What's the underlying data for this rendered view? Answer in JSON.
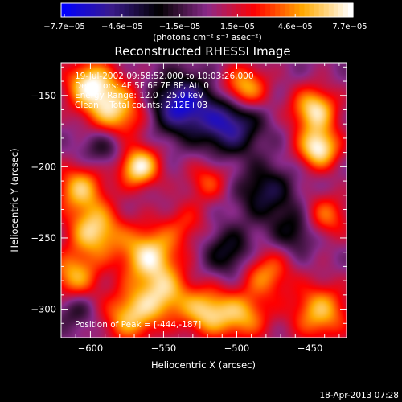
{
  "chart_data": {
    "type": "heatmap",
    "title": "Reconstructed RHESSI Image",
    "xlabel": "Heliocentric X (arcsec)",
    "ylabel": "Heliocentric Y (arcsec)",
    "xlim": [
      -620,
      -425
    ],
    "ylim": [
      -320,
      -127
    ],
    "x_ticks": [
      -600,
      -550,
      -500,
      -450
    ],
    "x_tick_labels": [
      "−600",
      "−550",
      "−500",
      "−450"
    ],
    "y_ticks": [
      -150,
      -200,
      -250,
      -300
    ],
    "y_tick_labels": [
      "−150",
      "−200",
      "−250",
      "−300"
    ],
    "colorbar": {
      "min": -7.7e-05,
      "max": 7.7e-05,
      "tick_labels": [
        "−7.7e−05",
        "−4.6e−05",
        "−1.5e−05",
        "1.5e−05",
        "4.6e−05",
        "7.7e−05"
      ],
      "unit_label": "(photons cm⁻² s⁻¹ asec⁻²)",
      "colors": [
        "#0000ff",
        "#3a1a8a",
        "#000000",
        "#8a2a8a",
        "#ff0000",
        "#ffaa00",
        "#ffffff"
      ]
    },
    "annotations": [
      "19-Jul-2002 09:58:52.000 to 10:03:26.000",
      "Detectors: 4F 5F 6F 7F 8F, Att 0",
      "Energy Range: 12.0 - 25.0 keV",
      "Clean    Total counts: 2.12E+03"
    ],
    "peak_label": "Position of Peak = [-444,-187]",
    "peak": [
      -444,
      -187
    ],
    "sources": [
      {
        "x": -600,
        "y": -142,
        "amp": 0.9,
        "s": 12
      },
      {
        "x": -583,
        "y": -162,
        "amp": 0.85,
        "s": 14
      },
      {
        "x": -567,
        "y": -200,
        "amp": 1.0,
        "s": 10
      },
      {
        "x": -607,
        "y": -215,
        "amp": 0.75,
        "s": 12
      },
      {
        "x": -597,
        "y": -245,
        "amp": 0.85,
        "s": 13
      },
      {
        "x": -611,
        "y": -277,
        "amp": 0.7,
        "s": 12
      },
      {
        "x": -560,
        "y": -262,
        "amp": 0.9,
        "s": 14
      },
      {
        "x": -550,
        "y": -290,
        "amp": 0.7,
        "s": 13
      },
      {
        "x": -573,
        "y": -305,
        "amp": 0.75,
        "s": 13
      },
      {
        "x": -520,
        "y": -302,
        "amp": 0.8,
        "s": 12
      },
      {
        "x": -495,
        "y": -305,
        "amp": 0.65,
        "s": 12
      },
      {
        "x": -480,
        "y": -275,
        "amp": 0.6,
        "s": 12
      },
      {
        "x": -443,
        "y": -302,
        "amp": 0.75,
        "s": 14
      },
      {
        "x": -439,
        "y": -235,
        "amp": 0.55,
        "s": 11
      },
      {
        "x": -444,
        "y": -187,
        "amp": 1.0,
        "s": 10
      },
      {
        "x": -447,
        "y": -160,
        "amp": 0.9,
        "s": 11
      },
      {
        "x": -495,
        "y": -145,
        "amp": 0.8,
        "s": 11
      },
      {
        "x": -520,
        "y": -210,
        "amp": 0.45,
        "s": 10
      },
      {
        "x": -535,
        "y": -240,
        "amp": 0.35,
        "s": 11
      },
      {
        "x": -538,
        "y": -157,
        "amp": -0.9,
        "s": 14
      },
      {
        "x": -505,
        "y": -170,
        "amp": -0.8,
        "s": 14
      },
      {
        "x": -590,
        "y": -185,
        "amp": -0.4,
        "s": 12
      },
      {
        "x": -480,
        "y": -218,
        "amp": -0.5,
        "s": 13
      },
      {
        "x": -505,
        "y": -260,
        "amp": -0.45,
        "s": 12
      },
      {
        "x": -460,
        "y": -245,
        "amp": -0.4,
        "s": 11
      },
      {
        "x": -610,
        "y": -300,
        "amp": -0.3,
        "s": 10
      }
    ]
  },
  "footer_timestamp": "18-Apr-2013 07:28"
}
